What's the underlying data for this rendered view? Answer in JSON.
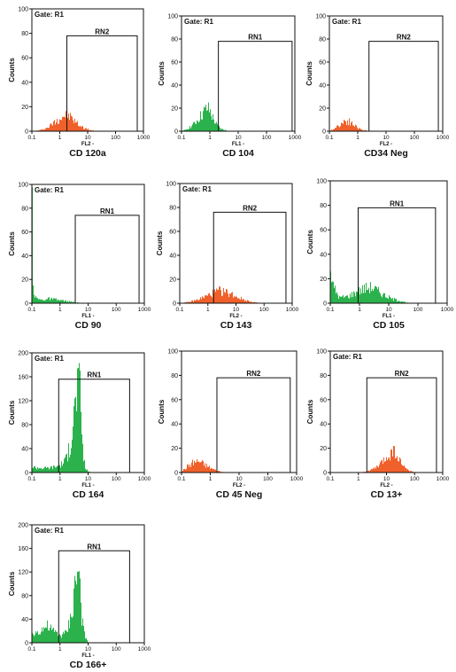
{
  "figure": {
    "panels": [
      {
        "gate_label": "Gate: R1",
        "region_label": "RN2",
        "x_axis_label": "FL2 -",
        "y_axis_label": "Counts",
        "caption": "CD 120a",
        "histogram_color": "#f0602a",
        "y_ticks": [
          "0",
          "20",
          "40",
          "60",
          "80",
          "100"
        ],
        "x_ticks": [
          "0.1",
          "1",
          "10",
          "100",
          "1000"
        ]
      },
      {
        "gate_label": "Gate: R1",
        "region_label": "RN1",
        "x_axis_label": "FL1 -",
        "y_axis_label": "Counts",
        "caption": "CD 104",
        "histogram_color": "#2bb24c",
        "y_ticks": [
          "0",
          "20",
          "40",
          "60",
          "80",
          "100"
        ],
        "x_ticks": [
          "0.1",
          "1",
          "10",
          "100",
          "1000"
        ]
      },
      {
        "gate_label": "Gate: R1",
        "region_label": "RN2",
        "x_axis_label": "FL2 -",
        "y_axis_label": "Counts",
        "caption": "CD34 Neg",
        "histogram_color": "#f0602a",
        "y_ticks": [
          "0",
          "20",
          "40",
          "60",
          "80",
          "100"
        ],
        "x_ticks": [
          "0.1",
          "1",
          "10",
          "100",
          "1000"
        ]
      },
      {
        "gate_label": "Gate: R1",
        "region_label": "RN1",
        "x_axis_label": "FL1 -",
        "y_axis_label": "Counts",
        "caption": "CD 90",
        "histogram_color": "#2bb24c",
        "y_ticks": [
          "0",
          "20",
          "40",
          "60",
          "80",
          "100"
        ],
        "x_ticks": [
          "0.1",
          "1",
          "10",
          "100",
          "1000"
        ]
      },
      {
        "gate_label": "Gate: R1",
        "region_label": "RN2",
        "x_axis_label": "FL2 -",
        "y_axis_label": "Counts",
        "caption": "CD 143",
        "histogram_color": "#f0602a",
        "y_ticks": [
          "0",
          "20",
          "40",
          "60",
          "80",
          "100"
        ],
        "x_ticks": [
          "0.1",
          "1",
          "10",
          "100",
          "1000"
        ]
      },
      {
        "gate_label": "",
        "region_label": "RN1",
        "x_axis_label": "FL1 -",
        "y_axis_label": "Counts",
        "caption": "CD 105",
        "histogram_color": "#2bb24c",
        "y_ticks": [
          "0",
          "20",
          "40",
          "60",
          "80",
          "100"
        ],
        "x_ticks": [
          "0.1",
          "1",
          "10",
          "100",
          "1000"
        ]
      },
      {
        "gate_label": "Gate: R1",
        "region_label": "RN1",
        "x_axis_label": "FL1 -",
        "y_axis_label": "Counts",
        "caption": "CD 164",
        "histogram_color": "#2bb24c",
        "y_ticks": [
          "0",
          "40",
          "80",
          "120",
          "160",
          "200"
        ],
        "x_ticks": [
          "0.1",
          "1",
          "10",
          "100",
          "1000"
        ]
      },
      {
        "gate_label": "",
        "region_label": "RN2",
        "x_axis_label": "FL2 -",
        "y_axis_label": "Counts",
        "caption": "CD 45 Neg",
        "histogram_color": "#f0602a",
        "y_ticks": [
          "0",
          "20",
          "40",
          "60",
          "80",
          "100"
        ],
        "x_ticks": [
          "0.1",
          "1",
          "10",
          "100",
          "1000"
        ]
      },
      {
        "gate_label": "Gate: R1",
        "region_label": "RN2",
        "x_axis_label": "FL2 -",
        "y_axis_label": "Counts",
        "caption": "CD 13+",
        "histogram_color": "#f0602a",
        "y_ticks": [
          "0",
          "20",
          "40",
          "60",
          "80",
          "100"
        ],
        "x_ticks": [
          "0.1",
          "1",
          "10",
          "100",
          "1000"
        ]
      },
      {
        "gate_label": "Gate: R1",
        "region_label": "RN1",
        "x_axis_label": "FL1 -",
        "y_axis_label": "Counts",
        "caption": "CD 166+",
        "histogram_color": "#2bb24c",
        "y_ticks": [
          "0",
          "40",
          "80",
          "120",
          "160",
          "200"
        ],
        "x_ticks": [
          "0.1",
          "1",
          "10",
          "100",
          "1000"
        ]
      }
    ]
  },
  "chart_data": [
    {
      "type": "area",
      "title": "CD 120a",
      "xlabel": "FL2 -",
      "ylabel": "Counts",
      "x_scale": "log",
      "xlim": [
        0.1,
        1000
      ],
      "ylim": [
        0,
        100
      ],
      "grid": false,
      "gate": "R1",
      "region": {
        "name": "RN2",
        "x_range": [
          1.8,
          600
        ],
        "y": 78
      },
      "series": [
        {
          "values": [
            [
              0.1,
              0
            ],
            [
              0.2,
              1
            ],
            [
              0.35,
              3
            ],
            [
              0.5,
              6
            ],
            [
              0.8,
              10
            ],
            [
              1.2,
              13
            ],
            [
              1.6,
              15
            ],
            [
              2.2,
              13
            ],
            [
              3,
              10
            ],
            [
              4.5,
              6
            ],
            [
              7,
              3
            ],
            [
              12,
              1
            ],
            [
              20,
              0
            ]
          ]
        }
      ]
    },
    {
      "type": "area",
      "title": "CD 104",
      "xlabel": "FL1 -",
      "ylabel": "Counts",
      "x_scale": "log",
      "xlim": [
        0.1,
        1000
      ],
      "ylim": [
        0,
        100
      ],
      "grid": false,
      "gate": "R1",
      "region": {
        "name": "RN1",
        "x_range": [
          2,
          800
        ],
        "y": 78
      },
      "series": [
        {
          "values": [
            [
              0.1,
              0
            ],
            [
              0.15,
              2
            ],
            [
              0.25,
              6
            ],
            [
              0.4,
              12
            ],
            [
              0.6,
              18
            ],
            [
              0.8,
              21
            ],
            [
              1.0,
              18
            ],
            [
              1.3,
              11
            ],
            [
              1.8,
              5
            ],
            [
              2.5,
              2
            ],
            [
              4,
              0.5
            ],
            [
              6,
              0
            ]
          ]
        }
      ]
    },
    {
      "type": "area",
      "title": "CD34 Neg",
      "xlabel": "FL2 -",
      "ylabel": "Counts",
      "x_scale": "log",
      "xlim": [
        0.1,
        1000
      ],
      "ylim": [
        0,
        100
      ],
      "grid": false,
      "gate": "R1",
      "region": {
        "name": "RN2",
        "x_range": [
          2.5,
          700
        ],
        "y": 78
      },
      "series": [
        {
          "values": [
            [
              0.1,
              0
            ],
            [
              0.15,
              3
            ],
            [
              0.25,
              7
            ],
            [
              0.35,
              10
            ],
            [
              0.5,
              9
            ],
            [
              0.7,
              6
            ],
            [
              1.0,
              3
            ],
            [
              1.5,
              1
            ],
            [
              2.5,
              0.3
            ],
            [
              4,
              0
            ]
          ]
        }
      ]
    },
    {
      "type": "area",
      "title": "CD 90",
      "xlabel": "FL1 -",
      "ylabel": "Counts",
      "x_scale": "log",
      "xlim": [
        0.1,
        1000
      ],
      "ylim": [
        0,
        100
      ],
      "grid": false,
      "gate": "R1",
      "region": {
        "name": "RN1",
        "x_range": [
          3.5,
          650
        ],
        "y": 74
      },
      "series": [
        {
          "values": [
            [
              0.1,
              92
            ],
            [
              0.105,
              40
            ],
            [
              0.11,
              12
            ],
            [
              0.13,
              5
            ],
            [
              0.2,
              3
            ],
            [
              0.4,
              4
            ],
            [
              0.8,
              3
            ],
            [
              1.5,
              2
            ],
            [
              3,
              1
            ],
            [
              6,
              0
            ]
          ]
        }
      ]
    },
    {
      "type": "area",
      "title": "CD 143",
      "xlabel": "FL2 -",
      "ylabel": "Counts",
      "x_scale": "log",
      "xlim": [
        0.1,
        1000
      ],
      "ylim": [
        0,
        100
      ],
      "grid": false,
      "gate": "R1",
      "region": {
        "name": "RN2",
        "x_range": [
          1.6,
          600
        ],
        "y": 76
      },
      "series": [
        {
          "values": [
            [
              0.1,
              0
            ],
            [
              0.2,
              1
            ],
            [
              0.4,
              3
            ],
            [
              0.8,
              6
            ],
            [
              1.5,
              9
            ],
            [
              2.5,
              11
            ],
            [
              4,
              10
            ],
            [
              7,
              8
            ],
            [
              12,
              5
            ],
            [
              20,
              3
            ],
            [
              40,
              1
            ],
            [
              80,
              0
            ]
          ]
        }
      ]
    },
    {
      "type": "area",
      "title": "CD 105",
      "xlabel": "FL1 -",
      "ylabel": "Counts",
      "x_scale": "log",
      "xlim": [
        0.1,
        1000
      ],
      "ylim": [
        0,
        100
      ],
      "grid": false,
      "region": {
        "name": "RN1",
        "x_range": [
          0.9,
          400
        ],
        "y": 78
      },
      "series": [
        {
          "values": [
            [
              0.1,
              30
            ],
            [
              0.12,
              15
            ],
            [
              0.2,
              5
            ],
            [
              0.4,
              6
            ],
            [
              0.8,
              10
            ],
            [
              1.5,
              13
            ],
            [
              2.5,
              14
            ],
            [
              4,
              11
            ],
            [
              7,
              7
            ],
            [
              12,
              4
            ],
            [
              25,
              2
            ],
            [
              50,
              0
            ]
          ]
        }
      ]
    },
    {
      "type": "area",
      "title": "CD 164",
      "xlabel": "FL1 -",
      "ylabel": "Counts",
      "x_scale": "log",
      "xlim": [
        0.1,
        1000
      ],
      "ylim": [
        0,
        200
      ],
      "grid": false,
      "gate": "R1",
      "region": {
        "name": "RN1",
        "x_range": [
          0.9,
          300
        ],
        "y": 156
      },
      "series": [
        {
          "values": [
            [
              0.1,
              10
            ],
            [
              0.3,
              8
            ],
            [
              0.6,
              10
            ],
            [
              1.0,
              14
            ],
            [
              1.5,
              22
            ],
            [
              2.2,
              45
            ],
            [
              3,
              100
            ],
            [
              3.7,
              150
            ],
            [
              4.3,
              162
            ],
            [
              5,
              140
            ],
            [
              5.7,
              90
            ],
            [
              6.5,
              30
            ],
            [
              8,
              6
            ],
            [
              12,
              0
            ]
          ]
        }
      ]
    },
    {
      "type": "area",
      "title": "CD 45 Neg",
      "xlabel": "FL2 -",
      "ylabel": "Counts",
      "x_scale": "log",
      "xlim": [
        0.1,
        1000
      ],
      "ylim": [
        0,
        100
      ],
      "grid": false,
      "region": {
        "name": "RN2",
        "x_range": [
          1.7,
          600
        ],
        "y": 78
      },
      "series": [
        {
          "values": [
            [
              0.1,
              1
            ],
            [
              0.15,
              5
            ],
            [
              0.25,
              9
            ],
            [
              0.4,
              10
            ],
            [
              0.6,
              7
            ],
            [
              1.0,
              4
            ],
            [
              1.5,
              2
            ],
            [
              2.5,
              0.5
            ],
            [
              4,
              0
            ]
          ]
        }
      ]
    },
    {
      "type": "area",
      "title": "CD 13+",
      "xlabel": "FL2 -",
      "ylabel": "Counts",
      "x_scale": "log",
      "xlim": [
        0.1,
        1000
      ],
      "ylim": [
        0,
        100
      ],
      "grid": false,
      "gate": "R1",
      "region": {
        "name": "RN2",
        "x_range": [
          2,
          600
        ],
        "y": 78
      },
      "series": [
        {
          "values": [
            [
              0.1,
              0
            ],
            [
              1,
              0
            ],
            [
              2,
              1
            ],
            [
              4,
              4
            ],
            [
              7,
              9
            ],
            [
              11,
              15
            ],
            [
              15,
              19
            ],
            [
              20,
              18
            ],
            [
              28,
              11
            ],
            [
              40,
              5
            ],
            [
              60,
              2
            ],
            [
              100,
              0
            ]
          ]
        }
      ]
    },
    {
      "type": "area",
      "title": "CD 166+",
      "xlabel": "FL1 -",
      "ylabel": "Counts",
      "x_scale": "log",
      "xlim": [
        0.1,
        1000
      ],
      "ylim": [
        0,
        200
      ],
      "grid": false,
      "gate": "R1",
      "region": {
        "name": "RN1",
        "x_range": [
          0.9,
          300
        ],
        "y": 156
      },
      "series": [
        {
          "values": [
            [
              0.1,
              14
            ],
            [
              0.2,
              24
            ],
            [
              0.35,
              30
            ],
            [
              0.6,
              20
            ],
            [
              1.0,
              14
            ],
            [
              1.6,
              18
            ],
            [
              2.2,
              40
            ],
            [
              3,
              85
            ],
            [
              3.8,
              130
            ],
            [
              4.5,
              132
            ],
            [
              5.2,
              90
            ],
            [
              6,
              40
            ],
            [
              7.5,
              10
            ],
            [
              10,
              0
            ]
          ]
        }
      ]
    }
  ]
}
